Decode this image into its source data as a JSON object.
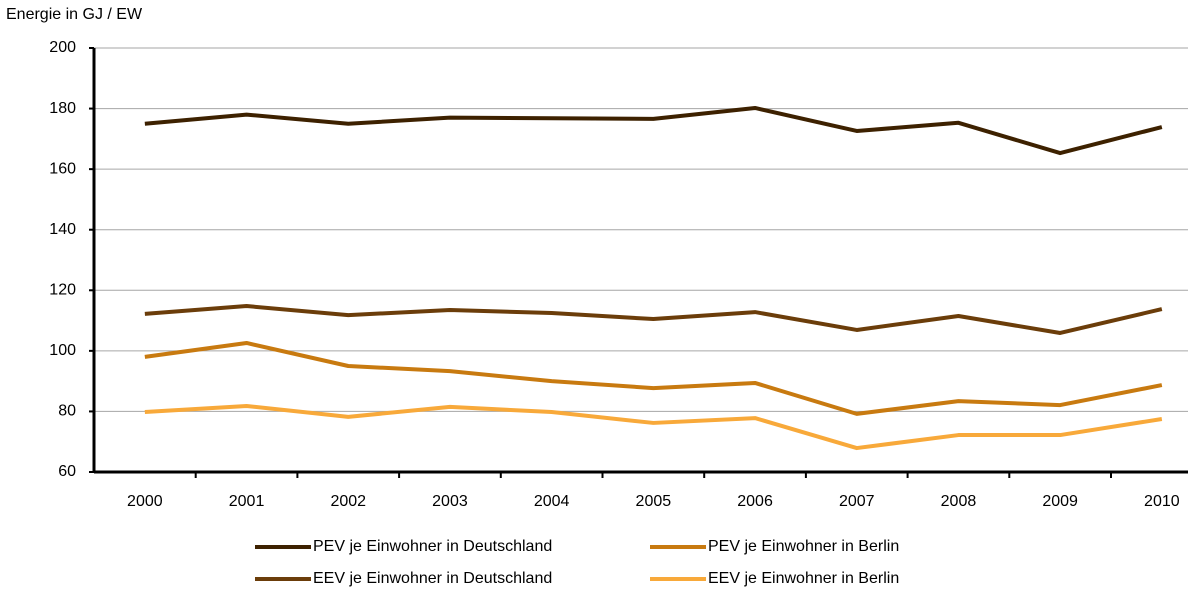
{
  "chart_data": {
    "type": "line",
    "y_axis_label": "Energie in GJ / EW",
    "categories": [
      "2000",
      "2001",
      "2002",
      "2003",
      "2004",
      "2005",
      "2006",
      "2007",
      "2008",
      "2009",
      "2010"
    ],
    "series": [
      {
        "name": "PEV je Einwohner in Deutschland",
        "color": "#3d2100",
        "values": [
          175,
          178,
          175,
          177,
          176.8,
          176.6,
          180.2,
          172.6,
          175.3,
          165.3,
          173.9
        ]
      },
      {
        "name": "PEV je Einwohner in Berlin",
        "color": "#c87a10",
        "values": [
          98,
          102.6,
          95,
          93.3,
          90,
          87.7,
          89.4,
          79.2,
          83.4,
          82.1,
          88.7
        ]
      },
      {
        "name": "EEV je Einwohner in Deutschland",
        "color": "#6b3d0a",
        "values": [
          112.2,
          114.8,
          111.8,
          113.5,
          112.5,
          110.5,
          112.8,
          106.9,
          111.5,
          105.9,
          113.8
        ]
      },
      {
        "name": "EEV je Einwohner in Berlin",
        "color": "#f8a93a",
        "values": [
          79.8,
          81.8,
          78.2,
          81.5,
          79.8,
          76.2,
          77.8,
          67.9,
          72.2,
          72.2,
          77.5
        ]
      }
    ],
    "ylim": [
      60,
      200
    ],
    "yticks": [
      60,
      80,
      100,
      120,
      140,
      160,
      180,
      200
    ],
    "grid": true
  }
}
